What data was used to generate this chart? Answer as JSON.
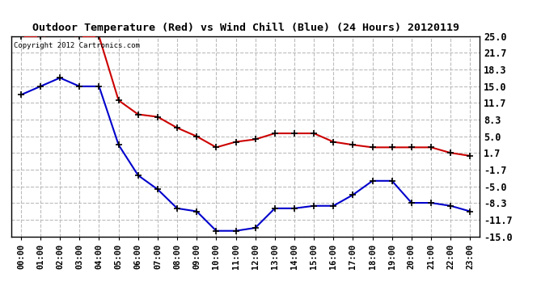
{
  "title": "Outdoor Temperature (Red) vs Wind Chill (Blue) (24 Hours) 20120119",
  "copyright_text": "Copyright 2012 Cartronics.com",
  "x_labels": [
    "00:00",
    "01:00",
    "02:00",
    "03:00",
    "04:00",
    "05:00",
    "06:00",
    "07:00",
    "08:00",
    "09:00",
    "10:00",
    "11:00",
    "12:00",
    "13:00",
    "14:00",
    "15:00",
    "16:00",
    "17:00",
    "18:00",
    "19:00",
    "20:00",
    "21:00",
    "22:00",
    "23:00"
  ],
  "y_ticks": [
    25.0,
    21.7,
    18.3,
    15.0,
    11.7,
    8.3,
    5.0,
    1.7,
    -1.7,
    -5.0,
    -8.3,
    -11.7,
    -15.0
  ],
  "ylim": [
    -15.0,
    25.0
  ],
  "red_temp": [
    25.0,
    25.0,
    25.6,
    25.0,
    25.0,
    12.2,
    9.4,
    8.9,
    6.7,
    5.0,
    2.8,
    3.9,
    4.4,
    5.6,
    5.6,
    5.6,
    3.9,
    3.3,
    2.8,
    2.8,
    2.8,
    2.8,
    1.7,
    1.1
  ],
  "blue_wind": [
    13.3,
    15.0,
    16.7,
    15.0,
    15.0,
    3.3,
    -2.8,
    -5.6,
    -9.4,
    -10.0,
    -13.9,
    -13.9,
    -13.3,
    -9.4,
    -9.4,
    -8.9,
    -8.9,
    -6.7,
    -3.9,
    -3.9,
    -8.3,
    -8.3,
    -8.9,
    -10.0
  ],
  "red_color": "#cc0000",
  "blue_color": "#0000cc",
  "bg_color": "#ffffff",
  "grid_color": "#bbbbbb",
  "title_fontsize": 9.5,
  "copyright_fontsize": 6.5,
  "tick_fontsize": 7.5,
  "ytick_fontsize": 8.5
}
